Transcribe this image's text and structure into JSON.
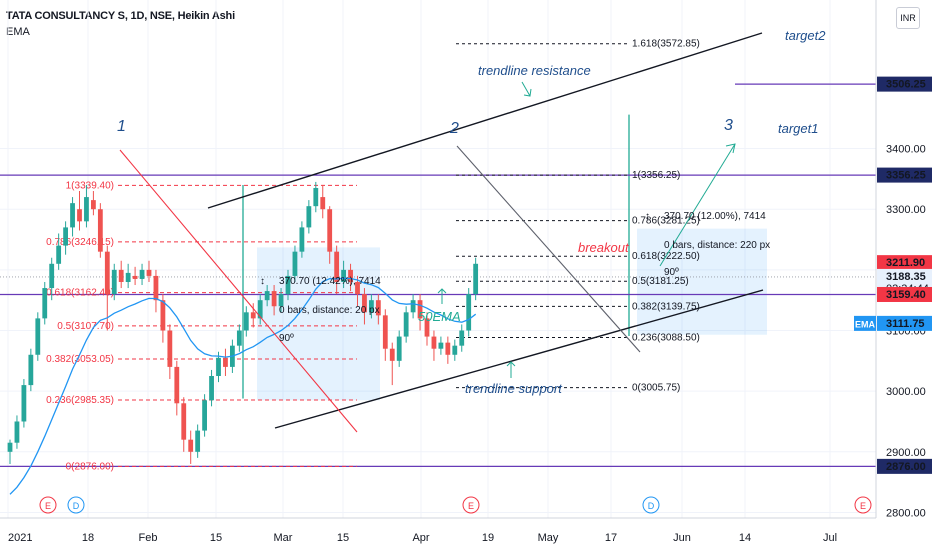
{
  "header": {
    "title": "TATA CONSULTANCY S, 1D, NSE, Heikin Ashi",
    "indicator": "EMA",
    "currency": "INR"
  },
  "chart_data": {
    "type": "candlestick",
    "x_ticks": [
      "2021",
      "18",
      "Feb",
      "15",
      "Mar",
      "15",
      "Apr",
      "19",
      "May",
      "17",
      "Jun",
      "14",
      "Jul"
    ],
    "y_ticks": [
      2800,
      2900,
      3000,
      3100,
      3200,
      3300,
      3400
    ],
    "ylim": [
      2752,
      3640
    ],
    "price_labels": [
      {
        "text": "3506.25",
        "value": 3506.25,
        "color": "#1f2a66"
      },
      {
        "text": "3356.25",
        "value": 3356.25,
        "color": "#1f2a66"
      },
      {
        "text": "3211.90",
        "value": 3211.9,
        "color": "#f23645"
      },
      {
        "text": "3188.35",
        "value": 3188.35,
        "color": "#e8f1fd",
        "sub": "02:34:44"
      },
      {
        "text": "3159.40",
        "value": 3159.4,
        "color": "#f23645"
      },
      {
        "text": "3111.75",
        "value": 3111.75,
        "color": "#2196f3",
        "tag": "EMA"
      },
      {
        "text": "2876.00",
        "value": 2876.0,
        "color": "#1f2a66"
      }
    ],
    "horizontal_levels": [
      3356.25,
      3159.4,
      2876.0
    ],
    "fib_left": [
      {
        "label": "1(3339.40)",
        "value": 3339.4
      },
      {
        "label": "0.786(3246.15)",
        "value": 3246.15
      },
      {
        "label": "0.618(3162.40)",
        "value": 3162.4
      },
      {
        "label": "0.5(3107.70)",
        "value": 3107.7
      },
      {
        "label": "0.382(3053.05)",
        "value": 3053.05
      },
      {
        "label": "0.236(2985.35)",
        "value": 2985.35
      },
      {
        "label": "0(2876.00)",
        "value": 2876.0
      }
    ],
    "fib_right": [
      {
        "label": "1.618(3572.85)",
        "value": 3572.85
      },
      {
        "label": "1(3356.25)",
        "value": 3356.25
      },
      {
        "label": "0.786(3281.25)",
        "value": 3281.25
      },
      {
        "label": "0.618(3222.50)",
        "value": 3222.5
      },
      {
        "label": "0.5(3181.25)",
        "value": 3181.25
      },
      {
        "label": "0.382(3139.75)",
        "value": 3139.75
      },
      {
        "label": "0.236(3088.50)",
        "value": 3088.5
      },
      {
        "label": "0(3005.75)",
        "value": 3005.75
      }
    ],
    "candles": [
      [
        2900,
        2915,
        2880,
        2920
      ],
      [
        2915,
        2950,
        2905,
        2960
      ],
      [
        2950,
        3010,
        2940,
        3020
      ],
      [
        3010,
        3060,
        3000,
        3070
      ],
      [
        3060,
        3120,
        3050,
        3130
      ],
      [
        3120,
        3170,
        3110,
        3180
      ],
      [
        3170,
        3210,
        3150,
        3220
      ],
      [
        3210,
        3240,
        3200,
        3260
      ],
      [
        3240,
        3270,
        3225,
        3280
      ],
      [
        3270,
        3310,
        3255,
        3320
      ],
      [
        3300,
        3280,
        3265,
        3330
      ],
      [
        3280,
        3320,
        3270,
        3340
      ],
      [
        3315,
        3300,
        3290,
        3330
      ],
      [
        3300,
        3230,
        3220,
        3310
      ],
      [
        3230,
        3160,
        3100,
        3240
      ],
      [
        3160,
        3200,
        3150,
        3210
      ],
      [
        3200,
        3180,
        3170,
        3215
      ],
      [
        3180,
        3195,
        3170,
        3210
      ],
      [
        3190,
        3185,
        3175,
        3205
      ],
      [
        3185,
        3200,
        3175,
        3210
      ],
      [
        3200,
        3190,
        3180,
        3215
      ],
      [
        3190,
        3150,
        3130,
        3200
      ],
      [
        3150,
        3100,
        3080,
        3160
      ],
      [
        3100,
        3040,
        3020,
        3110
      ],
      [
        3040,
        2980,
        2960,
        3050
      ],
      [
        2980,
        2920,
        2900,
        2990
      ],
      [
        2920,
        2900,
        2880,
        2935
      ],
      [
        2900,
        2935,
        2890,
        2945
      ],
      [
        2935,
        2985,
        2925,
        2995
      ],
      [
        2985,
        3025,
        2975,
        3035
      ],
      [
        3025,
        3055,
        3015,
        3065
      ],
      [
        3055,
        3040,
        3025,
        3070
      ],
      [
        3040,
        3075,
        3030,
        3085
      ],
      [
        3075,
        3100,
        3065,
        3110
      ],
      [
        3100,
        3130,
        3090,
        3140
      ],
      [
        3130,
        3120,
        3105,
        3145
      ],
      [
        3120,
        3150,
        3110,
        3160
      ],
      [
        3150,
        3165,
        3140,
        3175
      ],
      [
        3165,
        3140,
        3125,
        3175
      ],
      [
        3140,
        3160,
        3130,
        3170
      ],
      [
        3160,
        3190,
        3150,
        3200
      ],
      [
        3190,
        3230,
        3180,
        3240
      ],
      [
        3230,
        3270,
        3220,
        3280
      ],
      [
        3270,
        3305,
        3260,
        3315
      ],
      [
        3305,
        3335,
        3295,
        3345
      ],
      [
        3320,
        3300,
        3285,
        3340
      ],
      [
        3300,
        3230,
        3210,
        3305
      ],
      [
        3230,
        3180,
        3160,
        3240
      ],
      [
        3180,
        3200,
        3170,
        3215
      ],
      [
        3200,
        3180,
        3165,
        3210
      ],
      [
        3180,
        3160,
        3140,
        3190
      ],
      [
        3160,
        3130,
        3110,
        3170
      ],
      [
        3130,
        3150,
        3120,
        3160
      ],
      [
        3150,
        3125,
        3110,
        3160
      ],
      [
        3125,
        3070,
        3050,
        3135
      ],
      [
        3070,
        3050,
        3010,
        3080
      ],
      [
        3050,
        3090,
        3040,
        3100
      ],
      [
        3090,
        3130,
        3080,
        3140
      ],
      [
        3130,
        3150,
        3120,
        3160
      ],
      [
        3150,
        3120,
        3100,
        3160
      ],
      [
        3120,
        3090,
        3075,
        3130
      ],
      [
        3090,
        3070,
        3050,
        3100
      ],
      [
        3070,
        3080,
        3060,
        3090
      ],
      [
        3080,
        3060,
        3045,
        3090
      ],
      [
        3060,
        3075,
        3050,
        3085
      ],
      [
        3075,
        3100,
        3065,
        3110
      ],
      [
        3100,
        3160,
        3090,
        3170
      ],
      [
        3160,
        3210,
        3150,
        3220
      ]
    ],
    "drawings": {
      "wave_labels": [
        "1",
        "2",
        "3"
      ],
      "notes": [
        "trendline resistance",
        "trendline support",
        "50EMA",
        "target1",
        "target2",
        "breakout"
      ],
      "measure_left": {
        "line1": "370.70 (12.42%), 7414",
        "line2": "0 bars, distance: 20 px",
        "angle": "90º"
      },
      "measure_right": {
        "line1": "370.70 (12.00%), 7414",
        "line2": "0 bars, distance: 220 px",
        "angle": "90º"
      },
      "events": [
        "E",
        "D",
        "E",
        "D",
        "E"
      ]
    }
  }
}
